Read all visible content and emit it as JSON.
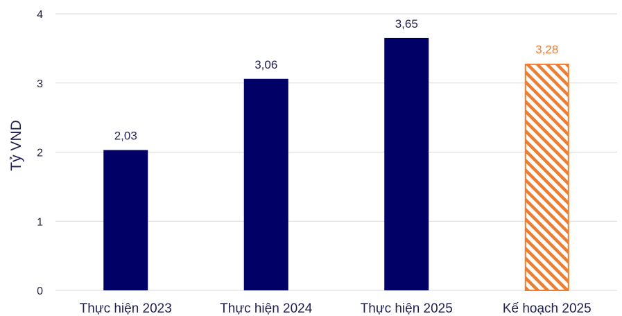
{
  "chart_data": {
    "type": "bar",
    "ylabel": "Tỷ VND",
    "ylim": [
      0,
      4
    ],
    "yticks": [
      "0",
      "1",
      "2",
      "3",
      "4"
    ],
    "categories": [
      "Thực hiện 2023",
      "Thực hiện 2024",
      "Thực hiện 2025",
      "Kế hoạch 2025"
    ],
    "values": [
      2.03,
      3.06,
      3.65,
      3.28
    ],
    "value_labels": [
      "2,03",
      "3,06",
      "3,65",
      "3,28"
    ],
    "bar_styles": [
      "solid",
      "solid",
      "solid",
      "hatched"
    ],
    "grid": true,
    "legend": "none",
    "colors": {
      "actual": "#000066",
      "plan": "#ed7d31",
      "grid": "#d9d9d9",
      "axis_text": "#1f1f4f"
    }
  }
}
